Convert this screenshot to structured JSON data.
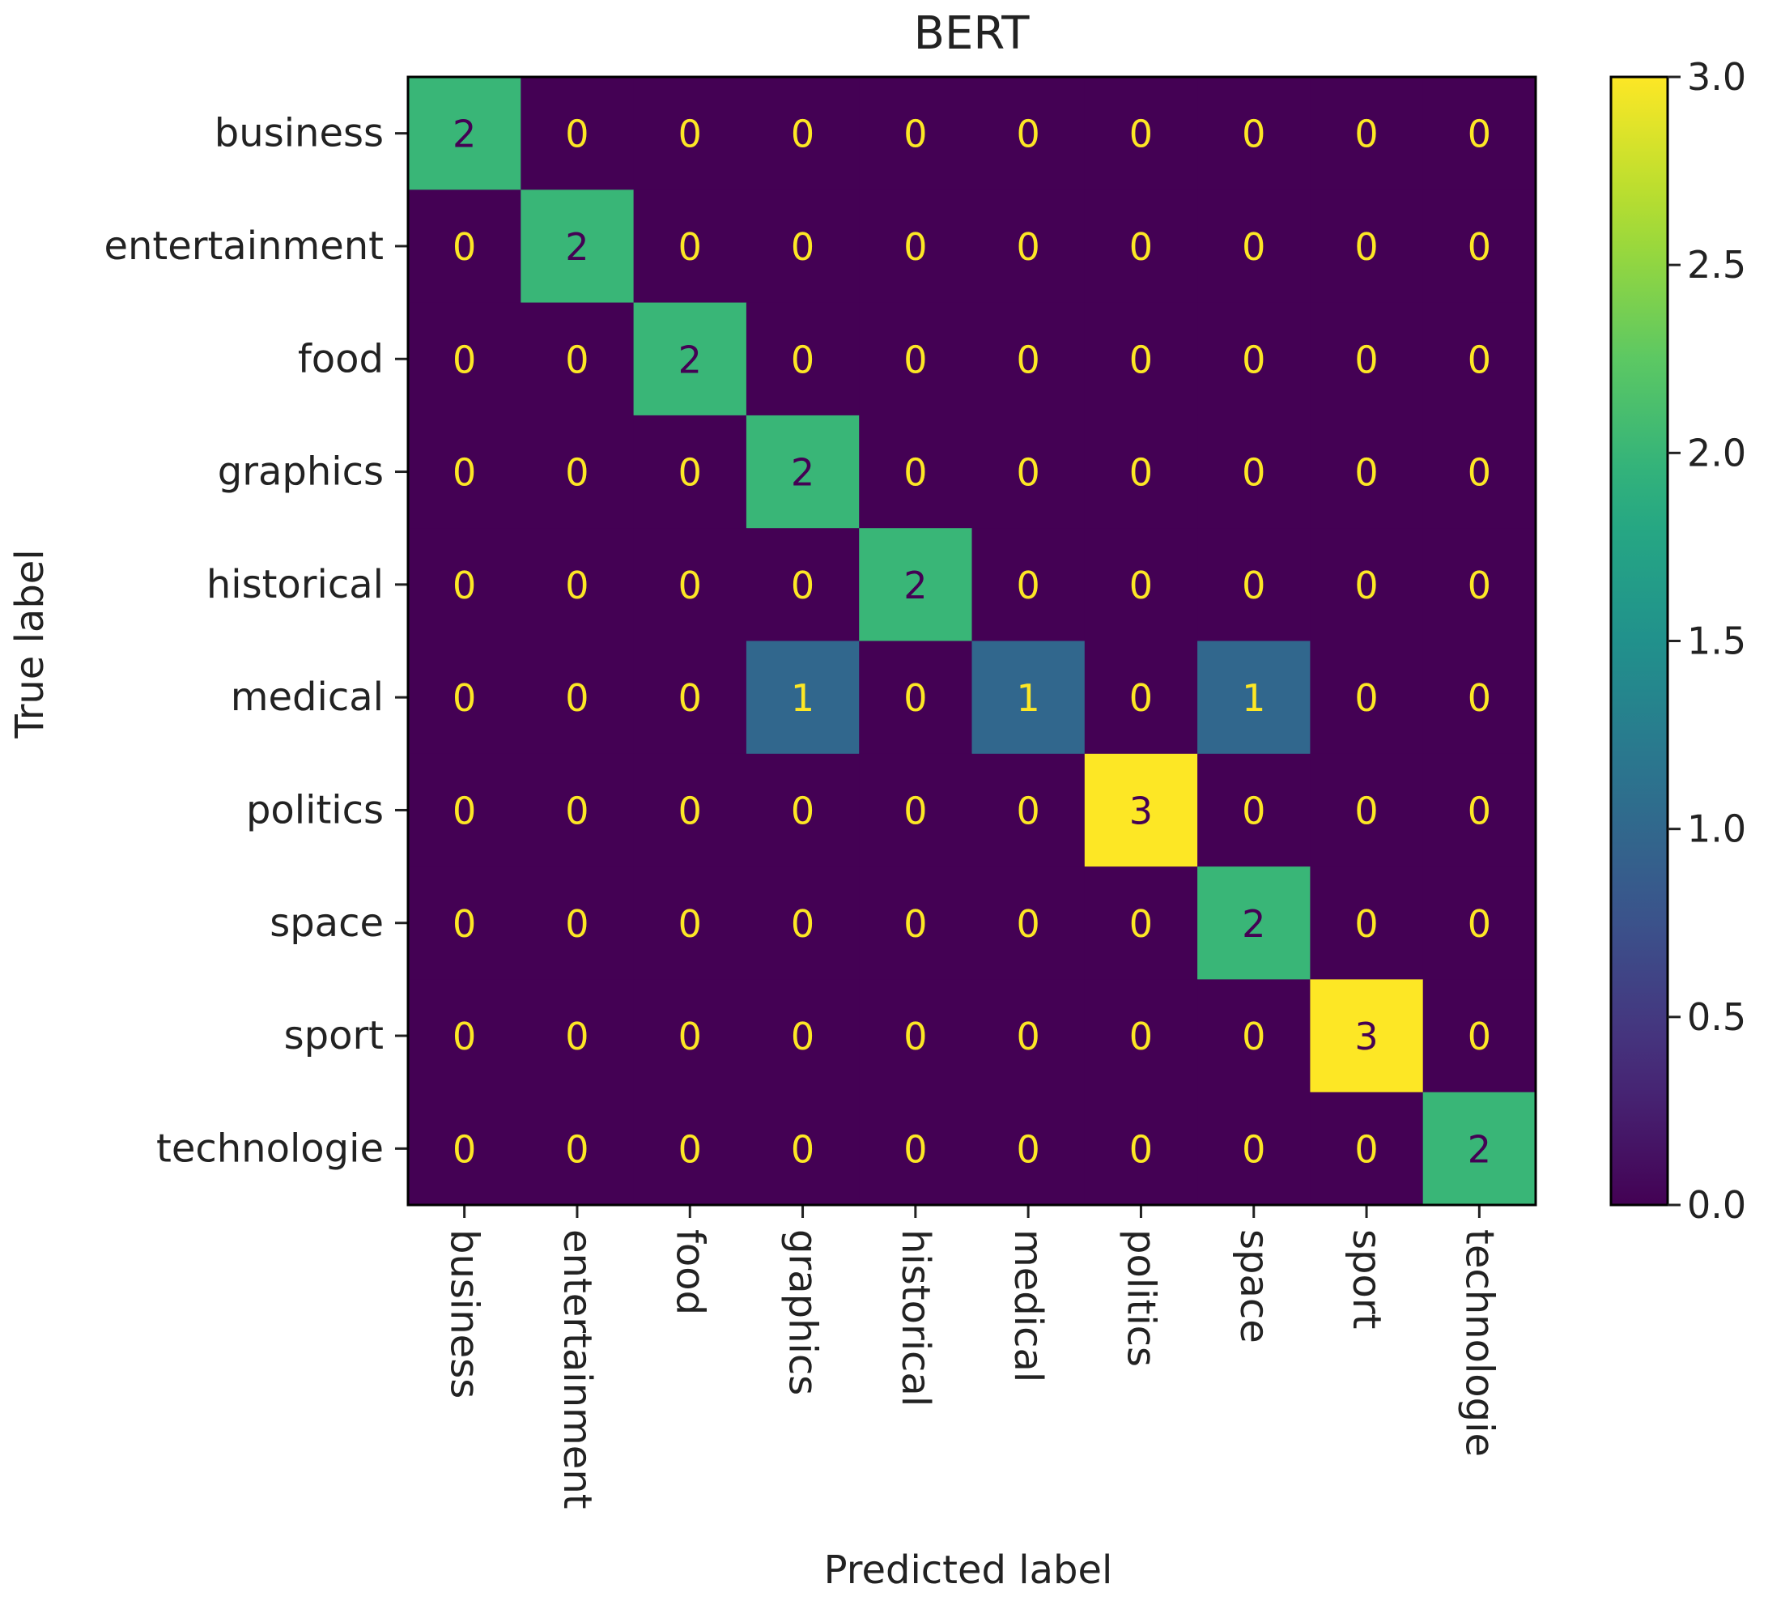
{
  "chart_data": {
    "type": "heatmap",
    "title": "BERT",
    "xlabel": "Predicted label",
    "ylabel": "True label",
    "x_categories": [
      "business",
      "entertainment",
      "food",
      "graphics",
      "historical",
      "medical",
      "politics",
      "space",
      "sport",
      "technologie"
    ],
    "y_categories": [
      "business",
      "entertainment",
      "food",
      "graphics",
      "historical",
      "medical",
      "politics",
      "space",
      "sport",
      "technologie"
    ],
    "values": [
      [
        2,
        0,
        0,
        0,
        0,
        0,
        0,
        0,
        0,
        0
      ],
      [
        0,
        2,
        0,
        0,
        0,
        0,
        0,
        0,
        0,
        0
      ],
      [
        0,
        0,
        2,
        0,
        0,
        0,
        0,
        0,
        0,
        0
      ],
      [
        0,
        0,
        0,
        2,
        0,
        0,
        0,
        0,
        0,
        0
      ],
      [
        0,
        0,
        0,
        0,
        2,
        0,
        0,
        0,
        0,
        0
      ],
      [
        0,
        0,
        0,
        1,
        0,
        1,
        0,
        1,
        0,
        0
      ],
      [
        0,
        0,
        0,
        0,
        0,
        0,
        3,
        0,
        0,
        0
      ],
      [
        0,
        0,
        0,
        0,
        0,
        0,
        0,
        2,
        0,
        0
      ],
      [
        0,
        0,
        0,
        0,
        0,
        0,
        0,
        0,
        3,
        0
      ],
      [
        0,
        0,
        0,
        0,
        0,
        0,
        0,
        0,
        0,
        2
      ]
    ],
    "colorbar": {
      "range": [
        0,
        3
      ],
      "ticks": [
        "0.0",
        "0.5",
        "1.0",
        "1.5",
        "2.0",
        "2.5",
        "3.0"
      ],
      "colormap": "viridis"
    },
    "colors": {
      "low": "#440154",
      "text_low": "#fde725",
      "text_high": "#440154"
    }
  }
}
